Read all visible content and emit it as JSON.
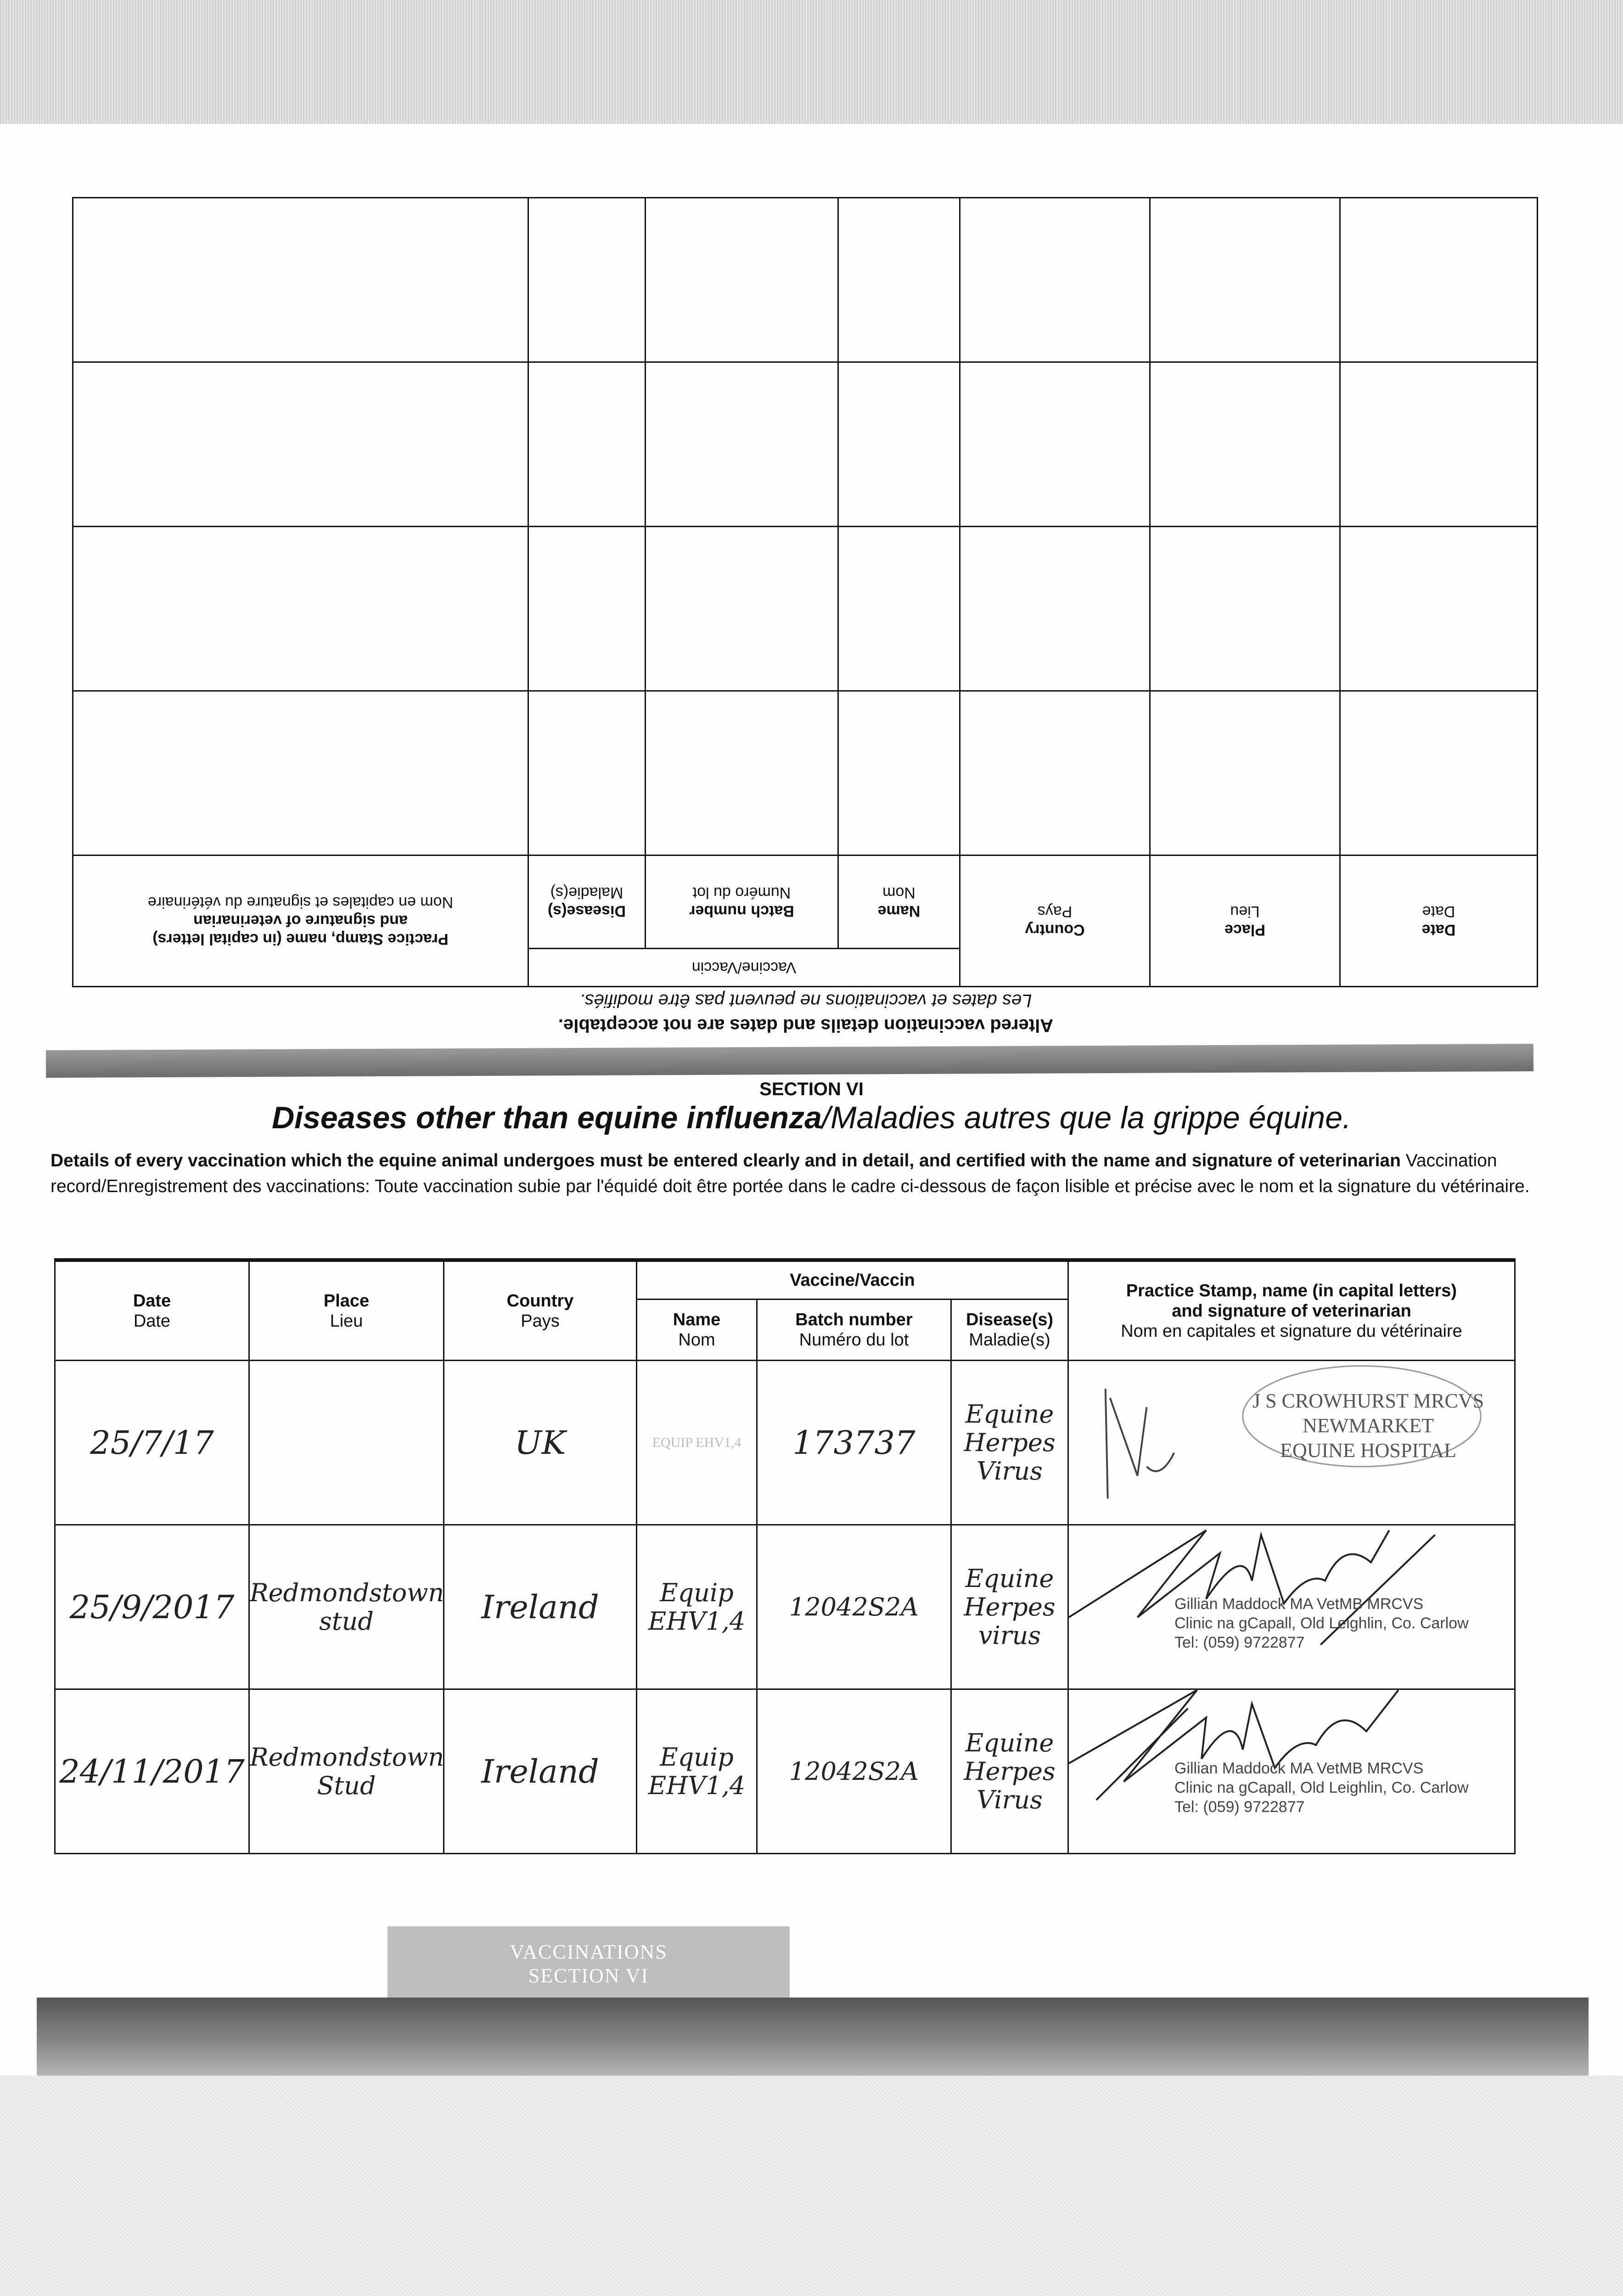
{
  "previous_page": {
    "table_headers": {
      "date": {
        "en": "Date",
        "fr": "Date"
      },
      "place": {
        "en": "Place",
        "fr": "Lieu"
      },
      "country": {
        "en": "Country",
        "fr": "Pays"
      },
      "vaccine_group": "Vaccine/Vaccin",
      "name": {
        "en": "Name",
        "fr": "Nom"
      },
      "batch": {
        "en": "Batch number",
        "fr": "Numéro du lot"
      },
      "disease": {
        "en": "Disease(s)",
        "fr": "Maladie(s)"
      },
      "stamp": {
        "en1": "Practice Stamp, name (in capital letters)",
        "en2": "and signature of veterinarian",
        "fr": "Nom en capitales et signature du vétérinaire"
      }
    },
    "note_en": "Altered vaccination details and dates are not acceptable.",
    "note_fr": "Les dates et vaccinations ne peuvent pas être modifiés."
  },
  "section": {
    "label": "SECTION VI",
    "title_en": "Diseases other than equine influenza",
    "title_fr": "/Maladies autres que la grippe équine.",
    "intro_en": "Details of every vaccination which the equine animal undergoes must be entered clearly and in detail, and certified with the name and signature of veterinarian",
    "intro_fr": "Vaccination record/Enregistrement des vaccinations: Toute vaccination subie par l'équidé doit être portée dans le cadre ci-dessous de façon lisible et précise avec le nom et la signature du vétérinaire."
  },
  "table": {
    "headers": {
      "date": {
        "en": "Date",
        "fr": "Date"
      },
      "place": {
        "en": "Place",
        "fr": "Lieu"
      },
      "country": {
        "en": "Country",
        "fr": "Pays"
      },
      "vaccine_group": "Vaccine/Vaccin",
      "name": {
        "en": "Name",
        "fr": "Nom"
      },
      "batch": {
        "en": "Batch number",
        "fr": "Numéro du lot"
      },
      "disease": {
        "en": "Disease(s)",
        "fr": "Maladie(s)"
      },
      "stamp": {
        "en1": "Practice Stamp, name (in capital letters)",
        "en2": "and signature of veterinarian",
        "fr": "Nom en capitales et signature du vétérinaire"
      }
    },
    "rows": [
      {
        "date": "25/7/17",
        "place": "",
        "country": "UK",
        "name": "EQUIP EHV1,4",
        "batch": "173737",
        "disease": "Equine Herpes Virus",
        "stamp": [
          "J S CROWHURST MRCVS",
          "NEWMARKET",
          "EQUINE HOSPITAL"
        ]
      },
      {
        "date": "25/9/2017",
        "place": "Redmondstown stud",
        "country": "Ireland",
        "name": "Equip EHV1,4",
        "batch": "12042S2A",
        "disease": "Equine Herpes virus",
        "stamp": [
          "Gillian Maddock MA VetMB MRCVS",
          "Clinic na gCapall, Old Leighlin, Co. Carlow",
          "Tel: (059) 9722877"
        ]
      },
      {
        "date": "24/11/2017",
        "place": "Redmondstown Stud",
        "country": "Ireland",
        "name": "Equip EHV1,4",
        "batch": "12042S2A",
        "disease": "Equine Herpes Virus",
        "stamp": [
          "Gillian Maddock MA VetMB MRCVS",
          "Clinic na gCapall, Old Leighlin, Co. Carlow",
          "Tel: (059) 9722877"
        ]
      }
    ]
  },
  "tab": {
    "line1": "VACCINATIONS",
    "line2": "SECTION VI"
  }
}
